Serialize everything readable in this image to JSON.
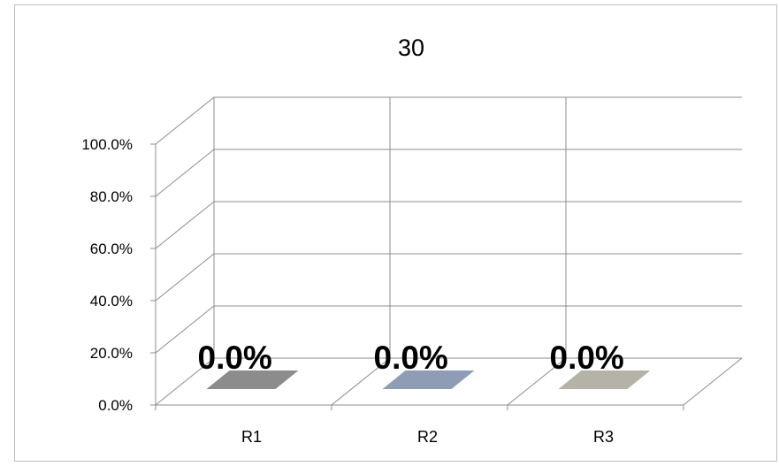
{
  "chart_data": {
    "type": "bar",
    "title": "30",
    "categories": [
      "R1",
      "R2",
      "R3"
    ],
    "values": [
      0.0,
      0.0,
      0.0
    ],
    "data_labels": [
      "0.0%",
      "0.0%",
      "0.0%"
    ],
    "bar_colors": [
      "#8c8c8c",
      "#8e9cb6",
      "#b5b3a8"
    ],
    "y_ticks": [
      "0.0%",
      "20.0%",
      "40.0%",
      "60.0%",
      "80.0%",
      "100.0%"
    ],
    "ylim": [
      0,
      100
    ],
    "three_d": true,
    "grid": true,
    "legend": "none",
    "xlabel": "",
    "ylabel": ""
  }
}
